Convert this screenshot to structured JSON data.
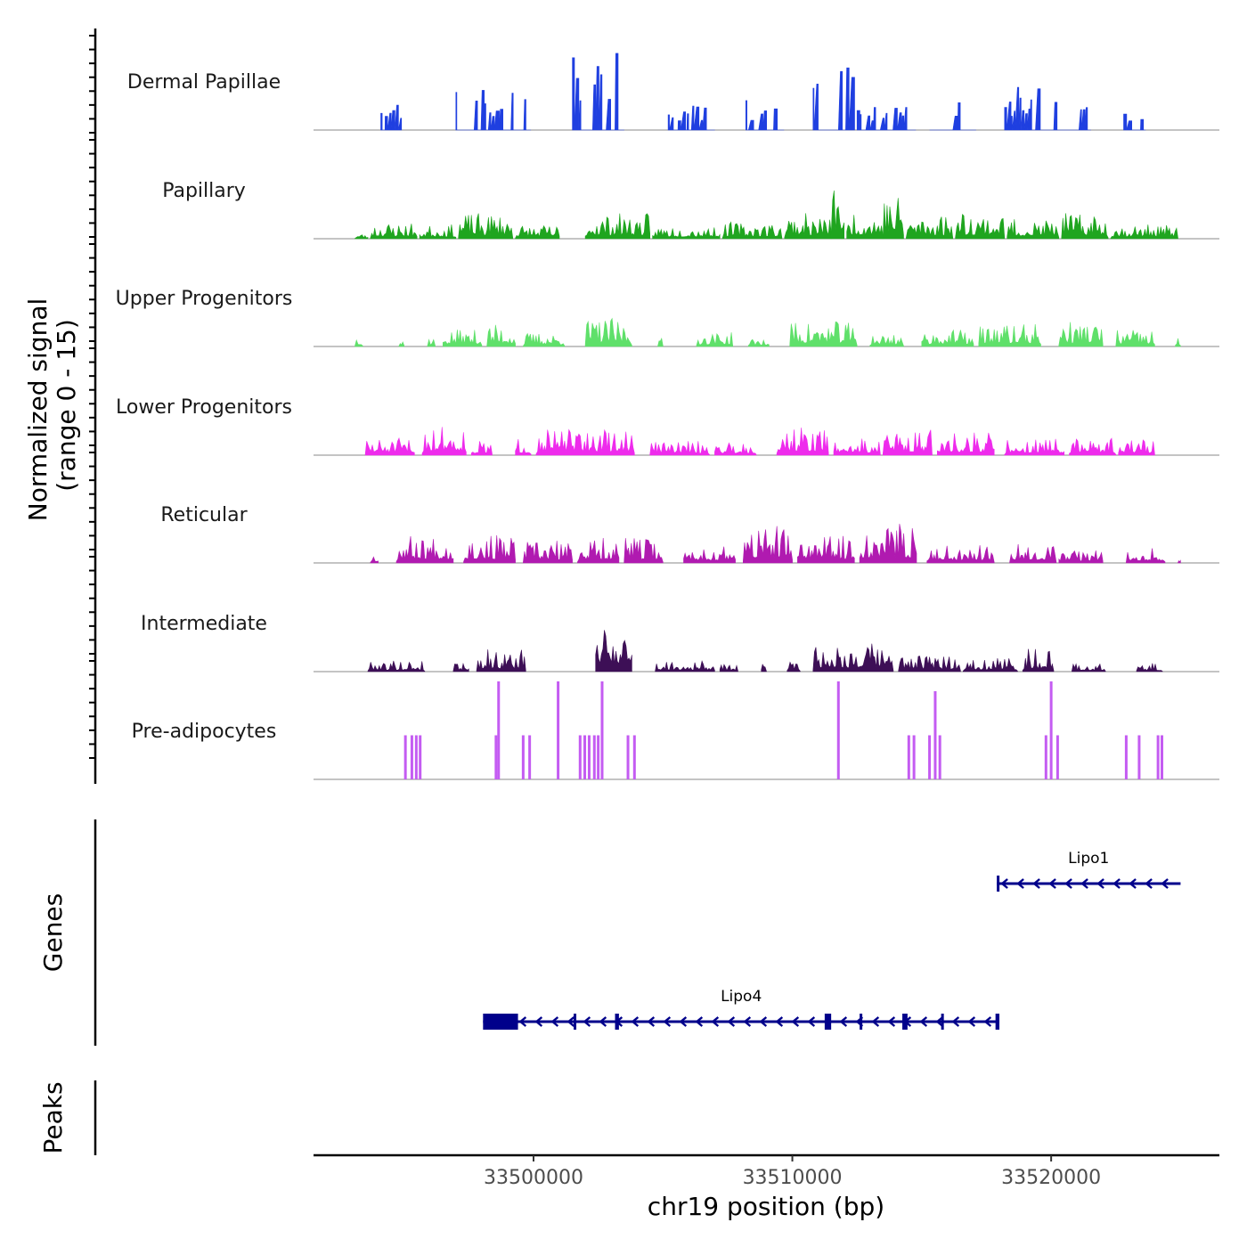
{
  "chart_data": {
    "type": "area",
    "chromosome": "chr19",
    "xlabel": "chr19 position (bp)",
    "xlim": [
      33491500,
      33526500
    ],
    "x_ticks": [
      {
        "value": 33500000,
        "label": "33500000"
      },
      {
        "value": 33510000,
        "label": "33510000"
      },
      {
        "value": 33520000,
        "label": "33520000"
      }
    ],
    "ylabel": [
      "Normalized signal",
      "(range 0 - 15)"
    ],
    "ylim": [
      0,
      15
    ],
    "tracks": [
      {
        "name": "Dermal Papillae",
        "color": "#1f3fe0",
        "style": "spiky",
        "seed": 11,
        "regions": [
          [
            33494100,
            33494900,
            1.0
          ],
          [
            33497000,
            33499900,
            1.3
          ],
          [
            33501500,
            33503500,
            2.8
          ],
          [
            33505200,
            33507000,
            1.0
          ],
          [
            33508200,
            33509600,
            1.0
          ],
          [
            33510800,
            33512400,
            2.2
          ],
          [
            33512500,
            33514700,
            0.9
          ],
          [
            33515300,
            33517100,
            1.5
          ],
          [
            33518200,
            33519500,
            1.4
          ],
          [
            33519600,
            33521500,
            1.1
          ],
          [
            33522800,
            33523600,
            0.8
          ]
        ]
      },
      {
        "name": "Papillary",
        "color": "#1fa51f",
        "style": "dense",
        "seed": 23,
        "regions": [
          [
            33493100,
            33493600,
            0.2
          ],
          [
            33493700,
            33495500,
            0.6
          ],
          [
            33495600,
            33497000,
            0.5
          ],
          [
            33497100,
            33499200,
            0.9
          ],
          [
            33499300,
            33501000,
            0.5
          ],
          [
            33502000,
            33504500,
            0.9
          ],
          [
            33504600,
            33507200,
            0.5
          ],
          [
            33507300,
            33509600,
            0.6
          ],
          [
            33509700,
            33511500,
            0.9
          ],
          [
            33511500,
            33512000,
            2.2
          ],
          [
            33512100,
            33513500,
            1.0
          ],
          [
            33513500,
            33514300,
            1.6
          ],
          [
            33514400,
            33516200,
            0.9
          ],
          [
            33516300,
            33518200,
            1.0
          ],
          [
            33518300,
            33520300,
            0.7
          ],
          [
            33520400,
            33522200,
            0.9
          ],
          [
            33522300,
            33524900,
            0.5
          ]
        ]
      },
      {
        "name": "Upper Progenitors",
        "color": "#5fe06a",
        "style": "dense",
        "seed": 37,
        "regions": [
          [
            33493100,
            33493400,
            0.5
          ],
          [
            33494800,
            33495000,
            0.3
          ],
          [
            33495900,
            33496200,
            0.4
          ],
          [
            33496500,
            33498000,
            0.6
          ],
          [
            33498200,
            33499300,
            0.8
          ],
          [
            33499600,
            33501200,
            0.5
          ],
          [
            33502000,
            33503800,
            1.0
          ],
          [
            33504800,
            33505000,
            0.3
          ],
          [
            33506300,
            33507700,
            0.5
          ],
          [
            33508300,
            33509100,
            0.3
          ],
          [
            33509900,
            33512500,
            0.9
          ],
          [
            33513000,
            33514300,
            0.5
          ],
          [
            33515000,
            33517000,
            0.6
          ],
          [
            33517200,
            33519600,
            0.8
          ],
          [
            33520300,
            33522000,
            0.9
          ],
          [
            33522500,
            33524000,
            0.6
          ],
          [
            33524800,
            33525000,
            0.3
          ]
        ]
      },
      {
        "name": "Lower Progenitors",
        "color": "#ee2bec",
        "style": "dense",
        "seed": 51,
        "regions": [
          [
            33493500,
            33495400,
            0.6
          ],
          [
            33495700,
            33497400,
            1.1
          ],
          [
            33497600,
            33498400,
            0.5
          ],
          [
            33499300,
            33499900,
            0.6
          ],
          [
            33500100,
            33503900,
            0.9
          ],
          [
            33504500,
            33506800,
            0.5
          ],
          [
            33507000,
            33508600,
            0.5
          ],
          [
            33509400,
            33511400,
            1.0
          ],
          [
            33511600,
            33513400,
            0.6
          ],
          [
            33513500,
            33515400,
            0.9
          ],
          [
            33515600,
            33517800,
            0.8
          ],
          [
            33518200,
            33520500,
            0.6
          ],
          [
            33520700,
            33522500,
            0.6
          ],
          [
            33522600,
            33524000,
            0.6
          ]
        ]
      },
      {
        "name": "Reticular",
        "color": "#b01ab0",
        "style": "dense",
        "seed": 67,
        "regions": [
          [
            33493700,
            33494000,
            0.4
          ],
          [
            33494700,
            33496900,
            1.0
          ],
          [
            33497300,
            33499300,
            1.0
          ],
          [
            33499600,
            33501500,
            0.8
          ],
          [
            33501700,
            33503300,
            0.9
          ],
          [
            33503500,
            33505000,
            0.9
          ],
          [
            33505800,
            33507800,
            0.6
          ],
          [
            33508100,
            33510000,
            1.3
          ],
          [
            33510200,
            33512400,
            1.0
          ],
          [
            33512600,
            33514800,
            1.4
          ],
          [
            33515200,
            33517800,
            0.7
          ],
          [
            33518400,
            33520200,
            0.8
          ],
          [
            33520300,
            33522000,
            0.5
          ],
          [
            33522900,
            33524400,
            0.6
          ],
          [
            33524900,
            33525000,
            0.3
          ]
        ]
      },
      {
        "name": "Intermediate",
        "color": "#3d0f56",
        "style": "dense",
        "seed": 79,
        "regions": [
          [
            33493600,
            33495800,
            0.4
          ],
          [
            33496900,
            33497500,
            0.4
          ],
          [
            33497800,
            33499700,
            0.8
          ],
          [
            33502400,
            33503800,
            2.0
          ],
          [
            33504700,
            33507000,
            0.4
          ],
          [
            33507200,
            33507900,
            0.3
          ],
          [
            33508800,
            33509000,
            0.3
          ],
          [
            33509800,
            33510300,
            0.6
          ],
          [
            33510800,
            33513900,
            1.0
          ],
          [
            33514100,
            33516500,
            0.6
          ],
          [
            33516600,
            33518700,
            0.5
          ],
          [
            33518900,
            33520100,
            0.8
          ],
          [
            33520800,
            33522100,
            0.3
          ],
          [
            33523300,
            33524300,
            0.3
          ]
        ]
      },
      {
        "name": "Pre-adipocytes",
        "color": "#c45cf2",
        "style": "sparse",
        "bars": [
          [
            33495050,
            0.45
          ],
          [
            33495300,
            0.45
          ],
          [
            33495470,
            0.45
          ],
          [
            33495620,
            0.45
          ],
          [
            33498550,
            0.45
          ],
          [
            33498650,
            1.0
          ],
          [
            33499600,
            0.45
          ],
          [
            33499850,
            0.45
          ],
          [
            33500950,
            1.0
          ],
          [
            33501800,
            0.45
          ],
          [
            33501980,
            0.45
          ],
          [
            33502150,
            0.45
          ],
          [
            33502350,
            0.45
          ],
          [
            33502500,
            0.45
          ],
          [
            33502650,
            1.0
          ],
          [
            33503650,
            0.45
          ],
          [
            33503900,
            0.45
          ],
          [
            33511780,
            1.0
          ],
          [
            33514500,
            0.45
          ],
          [
            33514700,
            0.45
          ],
          [
            33515300,
            0.45
          ],
          [
            33515520,
            0.9
          ],
          [
            33515700,
            0.45
          ],
          [
            33519800,
            0.45
          ],
          [
            33520000,
            1.0
          ],
          [
            33520250,
            0.45
          ],
          [
            33522900,
            0.45
          ],
          [
            33523400,
            0.45
          ],
          [
            33524130,
            0.45
          ],
          [
            33524280,
            0.45
          ]
        ]
      }
    ],
    "genes_label": "Genes",
    "peaks_label": "Peaks",
    "genes": [
      {
        "name": "Lipo1",
        "start": 33517900,
        "end": 33525000,
        "strand": "-",
        "exons": [
          [
            33517900,
            33518000
          ]
        ]
      },
      {
        "name": "Lipo4",
        "start": 33498050,
        "end": 33518000,
        "strand": "-",
        "exons": [
          [
            33498050,
            33499400
          ],
          [
            33501550,
            33501650
          ],
          [
            33503150,
            33503300
          ],
          [
            33511250,
            33511500
          ],
          [
            33512600,
            33512700
          ],
          [
            33514250,
            33514450
          ],
          [
            33515750,
            33515850
          ],
          [
            33517850,
            33518000
          ]
        ]
      }
    ],
    "colors": {
      "gene": "#00008b",
      "baseline": "#888888",
      "axis": "#000000"
    }
  }
}
